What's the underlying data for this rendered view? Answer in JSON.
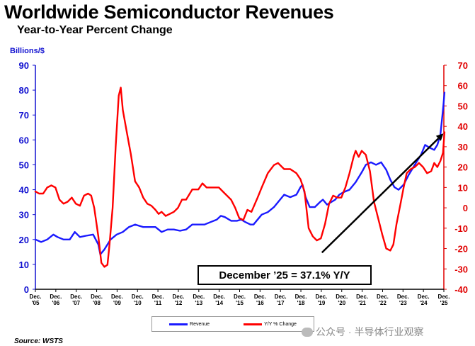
{
  "title": "Worldwide Semiconductor Revenues",
  "subtitle": "Year-to-Year Percent Change",
  "source": "Source: WSTS",
  "watermark": "公众号 · 半导体行业观察",
  "annotation": "December ’25 = 37.1% Y/Y",
  "colors": {
    "revenue": "#1a1aff",
    "yoy": "#ff0000",
    "trend": "#000000"
  },
  "chart_data": {
    "type": "line",
    "title": "Worldwide Semiconductor Revenues",
    "subtitle": "Year-to-Year Percent Change",
    "ylabel_left": "Billions/$",
    "ylim_left": [
      0,
      90
    ],
    "yticks_left": [
      "0",
      "10",
      "20",
      "30",
      "40",
      "50",
      "60",
      "70",
      "80",
      "90"
    ],
    "ylim_right": [
      -40,
      70
    ],
    "yticks_right": [
      "-40",
      "-30",
      "-20",
      "-10",
      "0",
      "10",
      "20",
      "30",
      "40",
      "50",
      "60",
      "70"
    ],
    "xlim": [
      2005.92,
      2025.92
    ],
    "x_ticks": [
      {
        "x": 2005.92,
        "top": "Dec.",
        "bottom": "'05"
      },
      {
        "x": 2006.92,
        "top": "Dec.",
        "bottom": "'06"
      },
      {
        "x": 2007.92,
        "top": "Dec.",
        "bottom": "'07"
      },
      {
        "x": 2008.92,
        "top": "Dec.",
        "bottom": "'08"
      },
      {
        "x": 2009.92,
        "top": "Dec.",
        "bottom": "'09"
      },
      {
        "x": 2010.92,
        "top": "Dec.",
        "bottom": "'10"
      },
      {
        "x": 2011.92,
        "top": "Dec.",
        "bottom": "'11"
      },
      {
        "x": 2012.92,
        "top": "Dec.",
        "bottom": "'12"
      },
      {
        "x": 2013.92,
        "top": "Dec.",
        "bottom": "'13"
      },
      {
        "x": 2014.92,
        "top": "Dec.",
        "bottom": "'14"
      },
      {
        "x": 2015.92,
        "top": "Dec.",
        "bottom": "'15"
      },
      {
        "x": 2016.92,
        "top": "Dec.",
        "bottom": "'16"
      },
      {
        "x": 2017.92,
        "top": "Dec.",
        "bottom": "'17"
      },
      {
        "x": 2018.92,
        "top": "Dec.",
        "bottom": "'18"
      },
      {
        "x": 2019.92,
        "top": "Dec.",
        "bottom": "'19"
      },
      {
        "x": 2020.92,
        "top": "Dec.",
        "bottom": "'20"
      },
      {
        "x": 2021.92,
        "top": "Dec.",
        "bottom": "'21"
      },
      {
        "x": 2022.92,
        "top": "Dec.",
        "bottom": "'22"
      },
      {
        "x": 2023.92,
        "top": "Dec.",
        "bottom": "'23"
      },
      {
        "x": 2024.92,
        "top": "Dec.",
        "bottom": "'24"
      },
      {
        "x": 2025.92,
        "top": "Dec.",
        "bottom": "'25"
      }
    ],
    "series": [
      {
        "name": "Revenue",
        "axis": "left",
        "color": "#1a1aff",
        "points": [
          [
            2005.92,
            20
          ],
          [
            2006.2,
            19
          ],
          [
            2006.5,
            20
          ],
          [
            2006.8,
            22
          ],
          [
            2007.0,
            21
          ],
          [
            2007.3,
            20
          ],
          [
            2007.6,
            20
          ],
          [
            2007.85,
            23
          ],
          [
            2008.1,
            21
          ],
          [
            2008.4,
            21.5
          ],
          [
            2008.75,
            22
          ],
          [
            2009.0,
            18
          ],
          [
            2009.1,
            14
          ],
          [
            2009.3,
            16
          ],
          [
            2009.6,
            20
          ],
          [
            2009.9,
            22
          ],
          [
            2010.2,
            23
          ],
          [
            2010.5,
            25
          ],
          [
            2010.8,
            26
          ],
          [
            2011.0,
            25.5
          ],
          [
            2011.2,
            25
          ],
          [
            2011.5,
            25
          ],
          [
            2011.8,
            25
          ],
          [
            2012.1,
            23
          ],
          [
            2012.4,
            24
          ],
          [
            2012.7,
            24
          ],
          [
            2013.0,
            23.5
          ],
          [
            2013.3,
            24
          ],
          [
            2013.6,
            26
          ],
          [
            2013.9,
            26
          ],
          [
            2014.2,
            26
          ],
          [
            2014.5,
            27
          ],
          [
            2014.8,
            28
          ],
          [
            2015.0,
            29.5
          ],
          [
            2015.2,
            29
          ],
          [
            2015.5,
            27.5
          ],
          [
            2015.8,
            27.5
          ],
          [
            2016.0,
            28
          ],
          [
            2016.2,
            27
          ],
          [
            2016.45,
            26
          ],
          [
            2016.6,
            26
          ],
          [
            2016.8,
            28
          ],
          [
            2017.0,
            30
          ],
          [
            2017.3,
            31
          ],
          [
            2017.6,
            33
          ],
          [
            2017.9,
            36
          ],
          [
            2018.1,
            38
          ],
          [
            2018.4,
            37
          ],
          [
            2018.7,
            38
          ],
          [
            2018.9,
            41
          ],
          [
            2019.0,
            42
          ],
          [
            2019.15,
            37
          ],
          [
            2019.35,
            33
          ],
          [
            2019.6,
            33
          ],
          [
            2019.85,
            35
          ],
          [
            2020.0,
            36
          ],
          [
            2020.2,
            34
          ],
          [
            2020.4,
            35
          ],
          [
            2020.6,
            36
          ],
          [
            2020.8,
            38
          ],
          [
            2021.0,
            39
          ],
          [
            2021.3,
            40
          ],
          [
            2021.6,
            43
          ],
          [
            2021.9,
            47
          ],
          [
            2022.1,
            50
          ],
          [
            2022.35,
            51
          ],
          [
            2022.6,
            50
          ],
          [
            2022.85,
            51
          ],
          [
            2023.1,
            48
          ],
          [
            2023.3,
            44
          ],
          [
            2023.5,
            41
          ],
          [
            2023.7,
            40
          ],
          [
            2023.95,
            42
          ],
          [
            2024.2,
            46
          ],
          [
            2024.5,
            50
          ],
          [
            2024.8,
            54
          ],
          [
            2025.0,
            58
          ],
          [
            2025.2,
            57
          ],
          [
            2025.45,
            56
          ],
          [
            2025.6,
            58
          ],
          [
            2025.75,
            62
          ],
          [
            2025.85,
            70
          ],
          [
            2025.9,
            74
          ],
          [
            2025.95,
            79
          ]
        ]
      },
      {
        "name": "Y/Y % Change",
        "axis": "right",
        "color": "#ff0000",
        "points": [
          [
            2005.92,
            8
          ],
          [
            2006.1,
            7
          ],
          [
            2006.3,
            7
          ],
          [
            2006.5,
            10
          ],
          [
            2006.7,
            11
          ],
          [
            2006.9,
            10
          ],
          [
            2007.1,
            4
          ],
          [
            2007.3,
            2
          ],
          [
            2007.5,
            3
          ],
          [
            2007.7,
            5
          ],
          [
            2007.9,
            2
          ],
          [
            2008.1,
            1
          ],
          [
            2008.3,
            6
          ],
          [
            2008.5,
            7
          ],
          [
            2008.65,
            6
          ],
          [
            2008.8,
            0
          ],
          [
            2009.0,
            -14
          ],
          [
            2009.15,
            -27
          ],
          [
            2009.3,
            -29
          ],
          [
            2009.45,
            -28
          ],
          [
            2009.55,
            -18
          ],
          [
            2009.7,
            0
          ],
          [
            2009.85,
            30
          ],
          [
            2010.0,
            55
          ],
          [
            2010.1,
            59
          ],
          [
            2010.2,
            48
          ],
          [
            2010.4,
            37
          ],
          [
            2010.6,
            26
          ],
          [
            2010.8,
            13
          ],
          [
            2011.0,
            10
          ],
          [
            2011.2,
            5
          ],
          [
            2011.4,
            2
          ],
          [
            2011.6,
            1
          ],
          [
            2011.8,
            -1
          ],
          [
            2011.95,
            -3
          ],
          [
            2012.1,
            -2
          ],
          [
            2012.3,
            -4
          ],
          [
            2012.5,
            -3
          ],
          [
            2012.7,
            -2
          ],
          [
            2012.9,
            0
          ],
          [
            2013.1,
            4
          ],
          [
            2013.3,
            4
          ],
          [
            2013.6,
            9
          ],
          [
            2013.9,
            9
          ],
          [
            2014.1,
            12
          ],
          [
            2014.3,
            10
          ],
          [
            2014.6,
            10
          ],
          [
            2014.9,
            10
          ],
          [
            2015.1,
            8
          ],
          [
            2015.3,
            6
          ],
          [
            2015.5,
            4
          ],
          [
            2015.7,
            0
          ],
          [
            2015.9,
            -5
          ],
          [
            2016.1,
            -6
          ],
          [
            2016.3,
            -1
          ],
          [
            2016.5,
            -2
          ],
          [
            2016.8,
            5
          ],
          [
            2017.0,
            10
          ],
          [
            2017.3,
            17
          ],
          [
            2017.6,
            21
          ],
          [
            2017.8,
            22
          ],
          [
            2018.1,
            19
          ],
          [
            2018.4,
            19
          ],
          [
            2018.7,
            17
          ],
          [
            2018.9,
            14
          ],
          [
            2019.1,
            8
          ],
          [
            2019.3,
            -10
          ],
          [
            2019.5,
            -14
          ],
          [
            2019.7,
            -16
          ],
          [
            2019.9,
            -15
          ],
          [
            2020.1,
            -8
          ],
          [
            2020.3,
            2
          ],
          [
            2020.5,
            6
          ],
          [
            2020.7,
            5
          ],
          [
            2020.9,
            5
          ],
          [
            2021.1,
            10
          ],
          [
            2021.3,
            17
          ],
          [
            2021.5,
            25
          ],
          [
            2021.6,
            28
          ],
          [
            2021.75,
            25
          ],
          [
            2021.9,
            28
          ],
          [
            2022.1,
            26
          ],
          [
            2022.3,
            18
          ],
          [
            2022.5,
            3
          ],
          [
            2022.7,
            -5
          ],
          [
            2022.9,
            -13
          ],
          [
            2023.1,
            -20
          ],
          [
            2023.3,
            -21
          ],
          [
            2023.45,
            -18
          ],
          [
            2023.6,
            -8
          ],
          [
            2023.8,
            2
          ],
          [
            2023.95,
            10
          ],
          [
            2024.1,
            17
          ],
          [
            2024.3,
            19
          ],
          [
            2024.5,
            20
          ],
          [
            2024.7,
            22
          ],
          [
            2024.9,
            20
          ],
          [
            2025.1,
            17
          ],
          [
            2025.3,
            18
          ],
          [
            2025.45,
            22
          ],
          [
            2025.6,
            20
          ],
          [
            2025.75,
            23
          ],
          [
            2025.88,
            27
          ],
          [
            2025.95,
            37.1
          ]
        ]
      }
    ],
    "trend_line": {
      "from": [
        2019.95,
        -22
      ],
      "to": [
        2025.9,
        36.5
      ],
      "axis": "right",
      "color": "#000000"
    },
    "annotations": [
      "December ’25 = 37.1% Y/Y"
    ],
    "legend": {
      "position": "bottom-center",
      "entries": [
        "Revenue",
        "Y/Y % Change"
      ]
    }
  }
}
